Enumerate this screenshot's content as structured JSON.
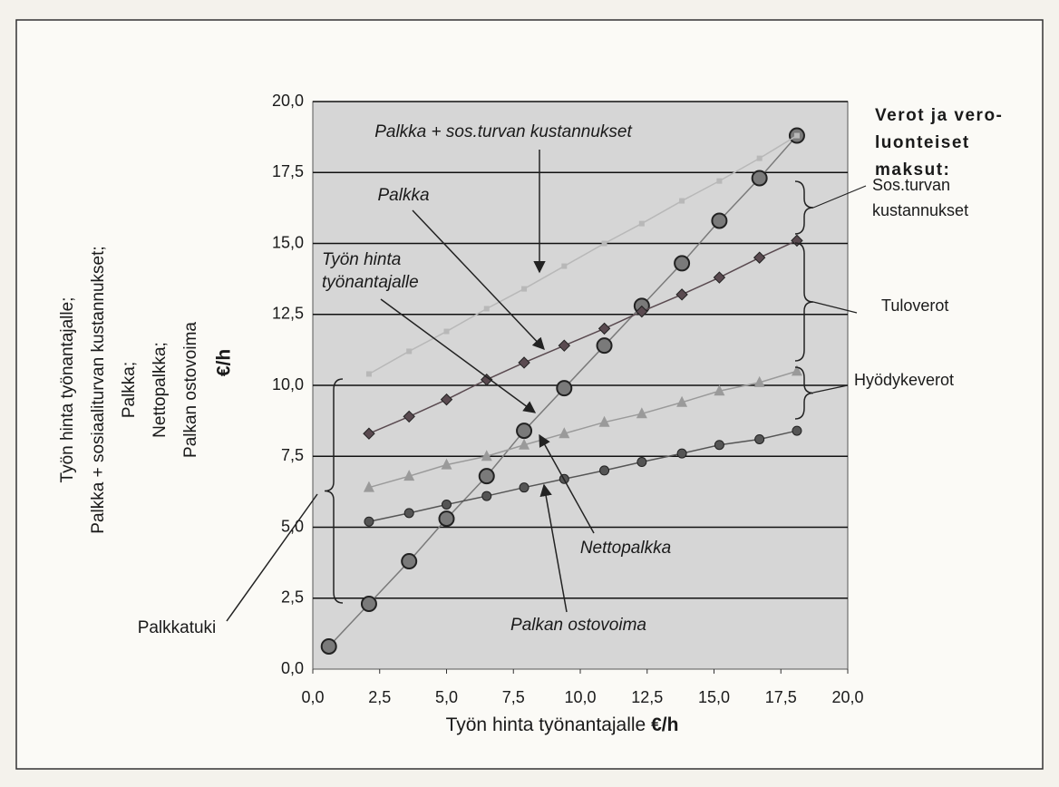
{
  "chart_data": {
    "type": "scatter",
    "y_label": [
      "Työn hinta työnantajalle;",
      "Palkka + sosiaaliturvan kustannukset;",
      "Palkka;",
      "Nettopalkka;",
      "Palkan ostovoima"
    ],
    "y_label_unit": "€/h",
    "x_label": "Työn hinta työnantajalle",
    "x_label_unit": "€/h",
    "xlim": [
      0,
      20
    ],
    "ylim": [
      0,
      20
    ],
    "xticks": [
      {
        "value": 0,
        "label": "0,0"
      },
      {
        "value": 2.5,
        "label": "2,5"
      },
      {
        "value": 5,
        "label": "5,0"
      },
      {
        "value": 7.5,
        "label": "7,5"
      },
      {
        "value": 10,
        "label": "10,0"
      },
      {
        "value": 12.5,
        "label": "12,5"
      },
      {
        "value": 15,
        "label": "15,0"
      },
      {
        "value": 17.5,
        "label": "17,5"
      },
      {
        "value": 20,
        "label": "20,0"
      }
    ],
    "yticks": [
      {
        "value": 0,
        "label": "0,0"
      },
      {
        "value": 2.5,
        "label": "2,5"
      },
      {
        "value": 5,
        "label": "5,0"
      },
      {
        "value": 7.5,
        "label": "7,5"
      },
      {
        "value": 10,
        "label": "10,0"
      },
      {
        "value": 12.5,
        "label": "12,5"
      },
      {
        "value": 15,
        "label": "15,0"
      },
      {
        "value": 17.5,
        "label": "17,5"
      },
      {
        "value": 20,
        "label": "20,0"
      }
    ],
    "grid": true,
    "series": [
      {
        "name": "Työn hinta työnantajalle",
        "color": "#7a7a7a",
        "marker": "circle",
        "x": [
          0.6,
          2.1,
          3.6,
          5.0,
          6.5,
          7.9,
          9.4,
          10.9,
          12.3,
          13.8,
          15.2,
          16.7,
          18.1
        ],
        "values": [
          0.8,
          2.3,
          3.8,
          5.3,
          6.8,
          8.4,
          9.9,
          11.4,
          12.8,
          14.3,
          15.8,
          17.3,
          18.8
        ]
      },
      {
        "name": "Palkka + sos.turvan kustannukset",
        "color": "#b8b8b8",
        "marker": "square",
        "x": [
          2.1,
          3.6,
          5.0,
          6.5,
          7.9,
          9.4,
          10.9,
          12.3,
          13.8,
          15.2,
          16.7,
          18.1
        ],
        "values": [
          10.4,
          11.2,
          11.9,
          12.7,
          13.4,
          14.2,
          15.0,
          15.7,
          16.5,
          17.2,
          18.0,
          18.8
        ]
      },
      {
        "name": "Palkka",
        "color": "#5a4a50",
        "marker": "diamond",
        "x": [
          2.1,
          3.6,
          5.0,
          6.5,
          7.9,
          9.4,
          10.9,
          12.3,
          13.8,
          15.2,
          16.7,
          18.1
        ],
        "values": [
          8.3,
          8.9,
          9.5,
          10.2,
          10.8,
          11.4,
          12.0,
          12.6,
          13.2,
          13.8,
          14.5,
          15.1
        ]
      },
      {
        "name": "Nettopalkka",
        "color": "#9a9a9a",
        "marker": "triangle",
        "x": [
          2.1,
          3.6,
          5.0,
          6.5,
          7.9,
          9.4,
          10.9,
          12.3,
          13.8,
          15.2,
          16.7,
          18.1
        ],
        "values": [
          6.4,
          6.8,
          7.2,
          7.5,
          7.9,
          8.3,
          8.7,
          9.0,
          9.4,
          9.8,
          10.1,
          10.5
        ]
      },
      {
        "name": "Palkan ostovoima",
        "color": "#555555",
        "marker": "dot",
        "x": [
          2.1,
          3.6,
          5.0,
          6.5,
          7.9,
          9.4,
          10.9,
          12.3,
          13.8,
          15.2,
          16.7,
          18.1
        ],
        "values": [
          5.2,
          5.5,
          5.8,
          6.1,
          6.4,
          6.7,
          7.0,
          7.3,
          7.6,
          7.9,
          8.1,
          8.4
        ]
      }
    ],
    "annotations": [
      {
        "text": [
          "Palkka + sos.turvan kustannukset"
        ]
      },
      {
        "text": [
          "Palkka"
        ]
      },
      {
        "text": [
          "Työn hinta",
          "työnantajalle"
        ]
      },
      {
        "text": [
          "Nettopalkka"
        ]
      },
      {
        "text": [
          "Palkan ostovoima"
        ]
      },
      {
        "text": [
          "Palkkatuki"
        ]
      }
    ],
    "tax_heading": [
      "Verot ja vero-",
      "luonteiset",
      "maksut:"
    ],
    "tax_labels": [
      {
        "text": [
          "Sos.turvan",
          "kustannukset"
        ]
      },
      {
        "text": [
          "Tuloverot"
        ]
      },
      {
        "text": [
          "Hyödykeverot"
        ]
      }
    ]
  }
}
